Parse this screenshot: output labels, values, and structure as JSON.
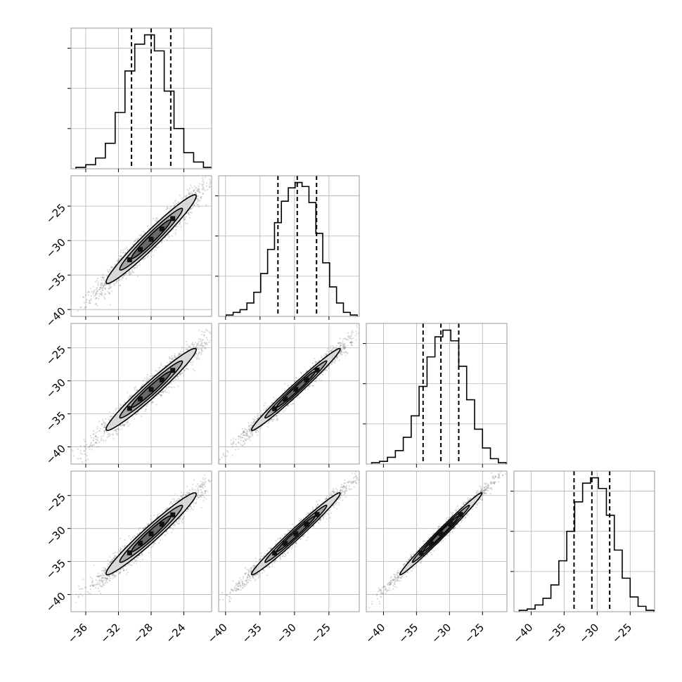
{
  "chart_data": {
    "type": "corner",
    "title": "",
    "n_params": 4,
    "param_labels": [
      "",
      "",
      "",
      ""
    ],
    "ranges": [
      [
        -37.8,
        -20.6
      ],
      [
        -41.0,
        -20.6
      ],
      [
        -42.6,
        -21.3
      ],
      [
        -42.6,
        -21.3
      ]
    ],
    "ticks": [
      [
        -36,
        -32,
        -28,
        -24
      ],
      [
        -40,
        -35,
        -30,
        -25
      ],
      [
        -40,
        -35,
        -30,
        -25
      ],
      [
        -40,
        -35,
        -30,
        -25
      ]
    ],
    "y_ticks_rows": {
      "1": [
        -40,
        -35,
        -30,
        -25
      ],
      "2": [
        -40,
        -35,
        -30,
        -25
      ],
      "3": [
        -40,
        -35,
        -30,
        -25
      ]
    },
    "quantile_lines": [
      [
        -30.4,
        -28.0,
        -25.6
      ],
      [
        -32.4,
        -29.6,
        -26.8
      ],
      [
        -34.0,
        -31.3,
        -28.6
      ],
      [
        -33.5,
        -30.8,
        -28.1
      ]
    ],
    "histograms": [
      {
        "bins": [
          -36.6,
          -35.4,
          -34.2,
          -33.0,
          -31.8,
          -30.6,
          -29.4,
          -28.2,
          -27.0,
          -25.8,
          -24.6,
          -23.4,
          -22.2,
          -21.0
        ],
        "values": [
          0.01,
          0.03,
          0.08,
          0.19,
          0.42,
          0.73,
          0.93,
          1.0,
          0.88,
          0.58,
          0.3,
          0.12,
          0.05,
          0.01
        ]
      },
      {
        "bins": [
          -39.4,
          -38.4,
          -37.4,
          -36.4,
          -35.4,
          -34.4,
          -33.4,
          -32.4,
          -31.4,
          -30.4,
          -29.4,
          -28.4,
          -27.4,
          -26.4,
          -25.4,
          -24.4,
          -23.4,
          -22.4,
          -21.4
        ],
        "values": [
          0.01,
          0.03,
          0.05,
          0.1,
          0.18,
          0.32,
          0.5,
          0.7,
          0.86,
          0.96,
          1.0,
          0.97,
          0.85,
          0.62,
          0.4,
          0.22,
          0.1,
          0.03,
          0.01
        ]
      },
      {
        "bins": [
          -41.2,
          -40.0,
          -38.8,
          -37.6,
          -36.4,
          -35.2,
          -34.0,
          -32.8,
          -31.6,
          -30.4,
          -29.2,
          -28.0,
          -26.8,
          -25.6,
          -24.4,
          -23.2,
          -22.0
        ],
        "values": [
          0.01,
          0.02,
          0.05,
          0.1,
          0.2,
          0.36,
          0.58,
          0.8,
          0.95,
          1.0,
          0.92,
          0.73,
          0.48,
          0.26,
          0.12,
          0.04,
          0.01
        ]
      },
      {
        "bins": [
          -41.2,
          -40.0,
          -38.8,
          -37.6,
          -36.4,
          -35.2,
          -34.0,
          -32.8,
          -31.6,
          -30.4,
          -29.2,
          -28.0,
          -26.8,
          -25.6,
          -24.4,
          -23.2,
          -22.0
        ],
        "values": [
          0.01,
          0.02,
          0.05,
          0.1,
          0.2,
          0.38,
          0.6,
          0.82,
          0.96,
          1.0,
          0.92,
          0.72,
          0.46,
          0.25,
          0.11,
          0.04,
          0.01
        ]
      }
    ],
    "means": [
      -28.0,
      -29.8,
      -31.3,
      -30.8
    ],
    "sigmas": [
      2.4,
      2.8,
      2.7,
      2.7
    ],
    "correlations": {
      "1-0": 0.97,
      "2-0": 0.97,
      "2-1": 0.985,
      "3-0": 0.97,
      "3-1": 0.985,
      "3-2": 0.99
    },
    "grid": true,
    "colors": {
      "hist": "#000000",
      "scatter": "#5a5a5a",
      "contour_fill": "#d8d8d8",
      "dense": "#111111"
    }
  }
}
